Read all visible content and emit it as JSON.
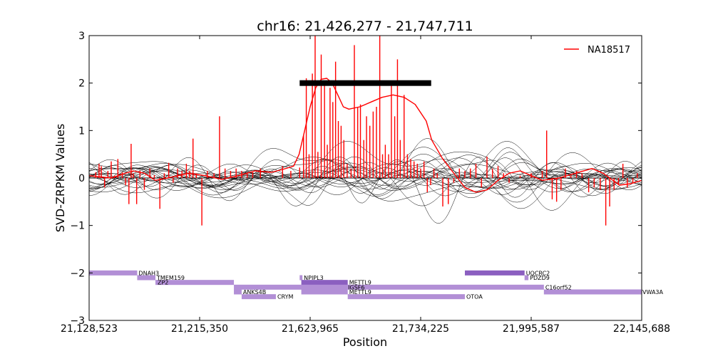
{
  "chart_data": {
    "type": "line",
    "title": "chr16: 21,426,277 - 21,747,711",
    "xlabel": "Position",
    "ylabel": "SVD-ZRPKM Values",
    "ylim": [
      -3,
      3
    ],
    "yticks": [
      -3,
      -2,
      -1,
      0,
      1,
      2,
      3
    ],
    "ytick_labels": [
      "−3",
      "−2",
      "−1",
      "0",
      "1",
      "2",
      "3"
    ],
    "xlim": [
      0,
      1
    ],
    "xticks": [
      0,
      0.2,
      0.4,
      0.6,
      0.8,
      1.0
    ],
    "xtick_labels": [
      "21,128,523",
      "21,215,350",
      "21,623,965",
      "21,734,225",
      "21,995,587",
      "22,145,688"
    ],
    "legend": {
      "position": "top-right",
      "entries": [
        {
          "label": "NA18517",
          "color": "#ff0000"
        }
      ]
    },
    "highlight_bar": {
      "x_start": 0.381,
      "x_end": 0.619,
      "y": 2.0,
      "color": "#000000"
    },
    "sample_series": {
      "name": "NA18517",
      "color": "#ff0000",
      "smooth": [
        [
          0.0,
          0.05
        ],
        [
          0.04,
          0.0
        ],
        [
          0.06,
          0.08
        ],
        [
          0.08,
          0.15
        ],
        [
          0.1,
          0.1
        ],
        [
          0.12,
          -0.05
        ],
        [
          0.15,
          0.02
        ],
        [
          0.18,
          0.1
        ],
        [
          0.21,
          0.05
        ],
        [
          0.24,
          -0.03
        ],
        [
          0.27,
          0.05
        ],
        [
          0.3,
          0.15
        ],
        [
          0.33,
          0.12
        ],
        [
          0.35,
          0.18
        ],
        [
          0.37,
          0.25
        ],
        [
          0.38,
          0.5
        ],
        [
          0.39,
          1.0
        ],
        [
          0.4,
          1.5
        ],
        [
          0.41,
          1.9
        ],
        [
          0.42,
          2.08
        ],
        [
          0.43,
          2.1
        ],
        [
          0.44,
          2.0
        ],
        [
          0.45,
          1.75
        ],
        [
          0.46,
          1.5
        ],
        [
          0.47,
          1.45
        ],
        [
          0.49,
          1.5
        ],
        [
          0.51,
          1.6
        ],
        [
          0.53,
          1.7
        ],
        [
          0.55,
          1.75
        ],
        [
          0.57,
          1.7
        ],
        [
          0.59,
          1.55
        ],
        [
          0.61,
          1.2
        ],
        [
          0.62,
          0.8
        ],
        [
          0.64,
          0.4
        ],
        [
          0.66,
          0.1
        ],
        [
          0.68,
          -0.2
        ],
        [
          0.7,
          -0.3
        ],
        [
          0.72,
          -0.25
        ],
        [
          0.74,
          -0.05
        ],
        [
          0.76,
          0.1
        ],
        [
          0.78,
          0.15
        ],
        [
          0.8,
          0.05
        ],
        [
          0.82,
          -0.05
        ],
        [
          0.85,
          0.0
        ],
        [
          0.88,
          0.1
        ],
        [
          0.91,
          0.2
        ],
        [
          0.93,
          0.1
        ],
        [
          0.96,
          -0.15
        ],
        [
          0.98,
          -0.12
        ],
        [
          1.0,
          -0.05
        ]
      ],
      "spikes": [
        [
          0.012,
          0.12
        ],
        [
          0.018,
          0.3
        ],
        [
          0.022,
          0.25
        ],
        [
          0.028,
          -0.2
        ],
        [
          0.034,
          0.15
        ],
        [
          0.04,
          0.35
        ],
        [
          0.046,
          0.05
        ],
        [
          0.052,
          0.4
        ],
        [
          0.06,
          0.12
        ],
        [
          0.066,
          -0.15
        ],
        [
          0.072,
          -0.55
        ],
        [
          0.076,
          0.72
        ],
        [
          0.08,
          0.1
        ],
        [
          0.086,
          -0.55
        ],
        [
          0.092,
          0.15
        ],
        [
          0.1,
          -0.25
        ],
        [
          0.11,
          0.2
        ],
        [
          0.118,
          0.06
        ],
        [
          0.128,
          -0.65
        ],
        [
          0.136,
          0.1
        ],
        [
          0.144,
          0.32
        ],
        [
          0.152,
          -0.1
        ],
        [
          0.16,
          0.2
        ],
        [
          0.168,
          0.15
        ],
        [
          0.176,
          0.3
        ],
        [
          0.182,
          0.15
        ],
        [
          0.188,
          0.83
        ],
        [
          0.194,
          0.1
        ],
        [
          0.204,
          -1.0
        ],
        [
          0.214,
          0.15
        ],
        [
          0.226,
          0.1
        ],
        [
          0.236,
          1.3
        ],
        [
          0.246,
          0.2
        ],
        [
          0.256,
          0.15
        ],
        [
          0.266,
          0.2
        ],
        [
          0.276,
          0.15
        ],
        [
          0.286,
          0.1
        ],
        [
          0.296,
          0.12
        ],
        [
          0.31,
          0.2
        ],
        [
          0.33,
          0.0
        ],
        [
          0.35,
          0.25
        ],
        [
          0.365,
          0.15
        ],
        [
          0.381,
          0.22
        ],
        [
          0.388,
          0.9
        ],
        [
          0.393,
          2.1
        ],
        [
          0.398,
          0.5
        ],
        [
          0.404,
          2.2
        ],
        [
          0.409,
          3.0
        ],
        [
          0.414,
          0.55
        ],
        [
          0.42,
          2.6
        ],
        [
          0.426,
          2.0
        ],
        [
          0.431,
          0.7
        ],
        [
          0.436,
          1.9
        ],
        [
          0.441,
          1.6
        ],
        [
          0.446,
          2.45
        ],
        [
          0.451,
          1.2
        ],
        [
          0.456,
          1.1
        ],
        [
          0.461,
          0.8
        ],
        [
          0.467,
          0.3
        ],
        [
          0.474,
          0.2
        ],
        [
          0.48,
          2.8
        ],
        [
          0.486,
          1.5
        ],
        [
          0.491,
          1.55
        ],
        [
          0.497,
          0.8
        ],
        [
          0.502,
          1.3
        ],
        [
          0.508,
          1.1
        ],
        [
          0.514,
          1.4
        ],
        [
          0.52,
          1.5
        ],
        [
          0.526,
          3.0
        ],
        [
          0.531,
          0.5
        ],
        [
          0.536,
          0.7
        ],
        [
          0.542,
          0.5
        ],
        [
          0.547,
          1.95
        ],
        [
          0.553,
          1.3
        ],
        [
          0.558,
          2.5
        ],
        [
          0.563,
          0.8
        ],
        [
          0.57,
          1.75
        ],
        [
          0.576,
          0.5
        ],
        [
          0.582,
          0.4
        ],
        [
          0.588,
          0.35
        ],
        [
          0.594,
          0.3
        ],
        [
          0.6,
          0.2
        ],
        [
          0.606,
          0.35
        ],
        [
          0.612,
          -0.3
        ],
        [
          0.618,
          -0.15
        ],
        [
          0.624,
          0.2
        ],
        [
          0.63,
          0.1
        ],
        [
          0.64,
          -0.6
        ],
        [
          0.65,
          -0.55
        ],
        [
          0.66,
          -0.1
        ],
        [
          0.67,
          0.2
        ],
        [
          0.68,
          0.15
        ],
        [
          0.69,
          0.2
        ],
        [
          0.7,
          0.3
        ],
        [
          0.71,
          -0.2
        ],
        [
          0.72,
          0.45
        ],
        [
          0.73,
          0.2
        ],
        [
          0.74,
          0.25
        ],
        [
          0.75,
          0.1
        ],
        [
          0.76,
          -0.1
        ],
        [
          0.78,
          0.05
        ],
        [
          0.8,
          0.1
        ],
        [
          0.82,
          0.15
        ],
        [
          0.828,
          1.0
        ],
        [
          0.838,
          -0.45
        ],
        [
          0.846,
          -0.5
        ],
        [
          0.854,
          -0.25
        ],
        [
          0.862,
          0.2
        ],
        [
          0.872,
          0.05
        ],
        [
          0.882,
          0.15
        ],
        [
          0.892,
          0.1
        ],
        [
          0.904,
          -0.3
        ],
        [
          0.914,
          -0.2
        ],
        [
          0.925,
          -0.25
        ],
        [
          0.935,
          -1.0
        ],
        [
          0.942,
          -0.6
        ],
        [
          0.95,
          -0.25
        ],
        [
          0.958,
          -0.15
        ],
        [
          0.966,
          0.3
        ],
        [
          0.974,
          -0.2
        ],
        [
          0.984,
          -0.1
        ],
        [
          0.992,
          0.1
        ]
      ]
    },
    "reference_series_count": 24,
    "genes": [
      {
        "name": "DNAH3",
        "x_start": 0.0,
        "x_end": 0.087,
        "y": -2.0,
        "shade": "light",
        "label_side": "right"
      },
      {
        "name": "TMEM159",
        "x_start": 0.087,
        "x_end": 0.12,
        "y": -2.1,
        "shade": "light",
        "label_side": "right"
      },
      {
        "name": "ZP2",
        "x_start": 0.12,
        "x_end": 0.262,
        "y": -2.2,
        "shade": "light",
        "label_side": "inside"
      },
      {
        "name": "ANKS4B",
        "x_start": 0.262,
        "x_end": 0.276,
        "y": -2.4,
        "shade": "light",
        "label_side": "right"
      },
      {
        "name": "CRYM",
        "x_start": 0.276,
        "x_end": 0.338,
        "y": -2.5,
        "shade": "light",
        "label_side": "right"
      },
      {
        "name": "NPIPL3",
        "x_start": 0.381,
        "x_end": 0.386,
        "y": -2.1,
        "shade": "light",
        "label_side": "right"
      },
      {
        "name": "METTL9",
        "x_start": 0.384,
        "x_end": 0.468,
        "y": -2.2,
        "shade": "dark",
        "label_side": "right"
      },
      {
        "name": "IGSF6",
        "x_start": 0.416,
        "x_end": 0.466,
        "y": -2.3,
        "shade": "dark",
        "label_side": "right"
      },
      {
        "name": "METTL9",
        "x_start": 0.384,
        "x_end": 0.468,
        "y": -2.4,
        "shade": "light",
        "label_side": "right"
      },
      {
        "name": "OTOA",
        "x_start": 0.468,
        "x_end": 0.68,
        "y": -2.5,
        "shade": "light",
        "label_side": "right"
      },
      {
        "name": "UQCRC2",
        "x_start": 0.68,
        "x_end": 0.788,
        "y": -2.0,
        "shade": "dark",
        "label_side": "right"
      },
      {
        "name": "PDZD9",
        "x_start": 0.788,
        "x_end": 0.795,
        "y": -2.1,
        "shade": "light",
        "label_side": "right"
      },
      {
        "name": "C16orf52",
        "x_start": 0.262,
        "x_end": 0.823,
        "y": -2.3,
        "shade": "light",
        "label_side": "right"
      },
      {
        "name": "VWA3A",
        "x_start": 0.823,
        "x_end": 1.0,
        "y": -2.4,
        "shade": "light",
        "label_side": "right"
      }
    ],
    "gene_colors": {
      "light": "#b28fd6",
      "dark": "#8b5fc0"
    }
  }
}
